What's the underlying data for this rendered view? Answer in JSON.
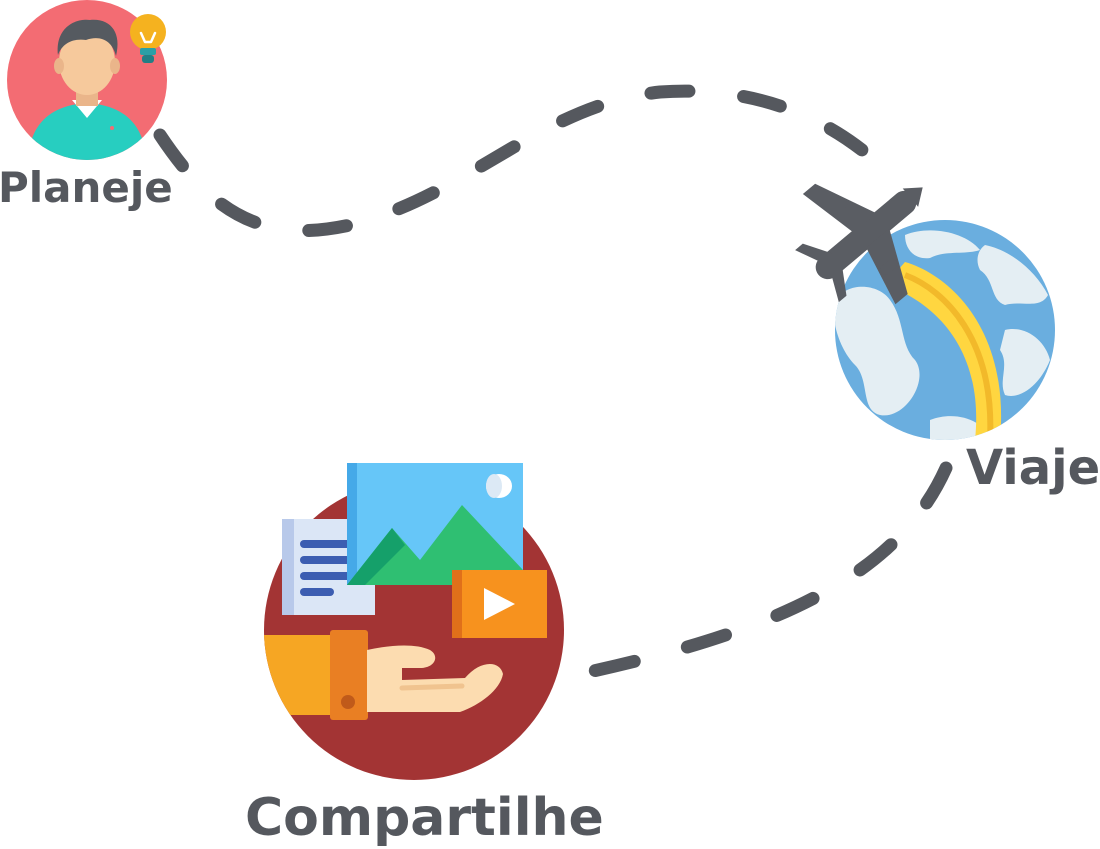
{
  "labels": {
    "plan": "Planeje",
    "travel": "Viaje",
    "share": "Compartilhe"
  },
  "colors": {
    "path": "#55585e",
    "label": "#55585e",
    "plan_bg": "#f36c73",
    "skin": "#f6c99c",
    "hair": "#555a60",
    "shirt": "#27cec0",
    "bulb": "#f5b21f",
    "ocean": "#6aaedf",
    "land": "#e4eef3",
    "trail": "#ffd640",
    "plane": "#5a5d63",
    "share_bg": "#a33434",
    "photo_sky": "#66c6f8",
    "mountain": "#2fbf72",
    "doc": "#dbe6f6",
    "doc_lines": "#3c5db1",
    "video": "#f7921e",
    "sleeve": "#f6a623",
    "cuff": "#e97f23",
    "hand": "#fcdcb0"
  },
  "icons": [
    "person-with-lightbulb-icon",
    "globe-with-airplane-icon",
    "hand-with-media-icon"
  ]
}
